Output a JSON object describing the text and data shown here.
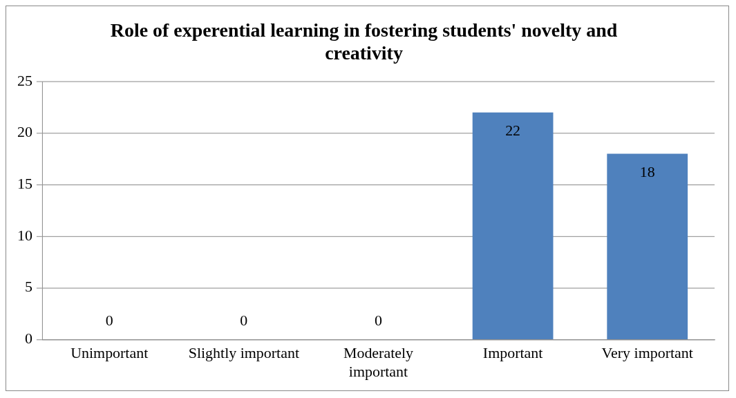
{
  "chart_data": {
    "type": "bar",
    "title": "Role of experential learning in fostering students' novelty and creativity",
    "categories": [
      "Unimportant",
      "Slightly important",
      "Moderately important",
      "Important",
      "Very important"
    ],
    "values": [
      0,
      0,
      0,
      22,
      18
    ],
    "color": "#4f81bd",
    "ylim": [
      0,
      25
    ],
    "yticks": [
      0,
      5,
      10,
      15,
      20,
      25
    ],
    "grid": "y",
    "data_labels": true
  }
}
